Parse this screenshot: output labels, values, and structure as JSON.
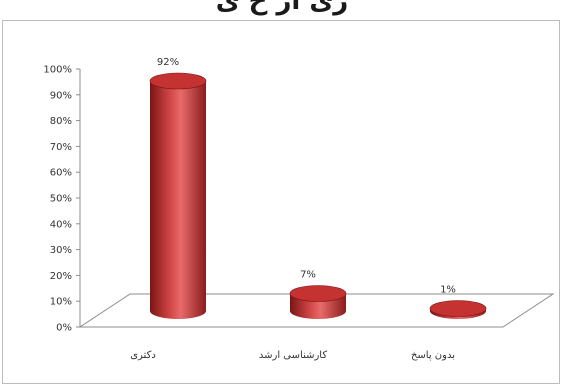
{
  "header": {
    "partial_title": "ری ار خ ی"
  },
  "colors": {
    "bar_body": "#b02a2a",
    "bar_light": "#e86a6a",
    "bar_dark": "#7a1515",
    "bar_top": "#c43232",
    "axis": "#8c8c8c",
    "frame": "#bdbdbd"
  },
  "chart_data": {
    "type": "bar",
    "style": "3d-cylinder",
    "categories": [
      "دکتری",
      "کارشناسی ارشد",
      "بدون پاسخ"
    ],
    "values": [
      92,
      7,
      1
    ],
    "data_labels": [
      "92%",
      "7%",
      "1%"
    ],
    "y_ticks": [
      "0%",
      "10%",
      "20%",
      "30%",
      "40%",
      "50%",
      "60%",
      "70%",
      "80%",
      "90%",
      "100%"
    ],
    "ylim": [
      0,
      100
    ],
    "ylabel": "",
    "xlabel": "",
    "title": "",
    "grid": false,
    "legend": "none"
  }
}
